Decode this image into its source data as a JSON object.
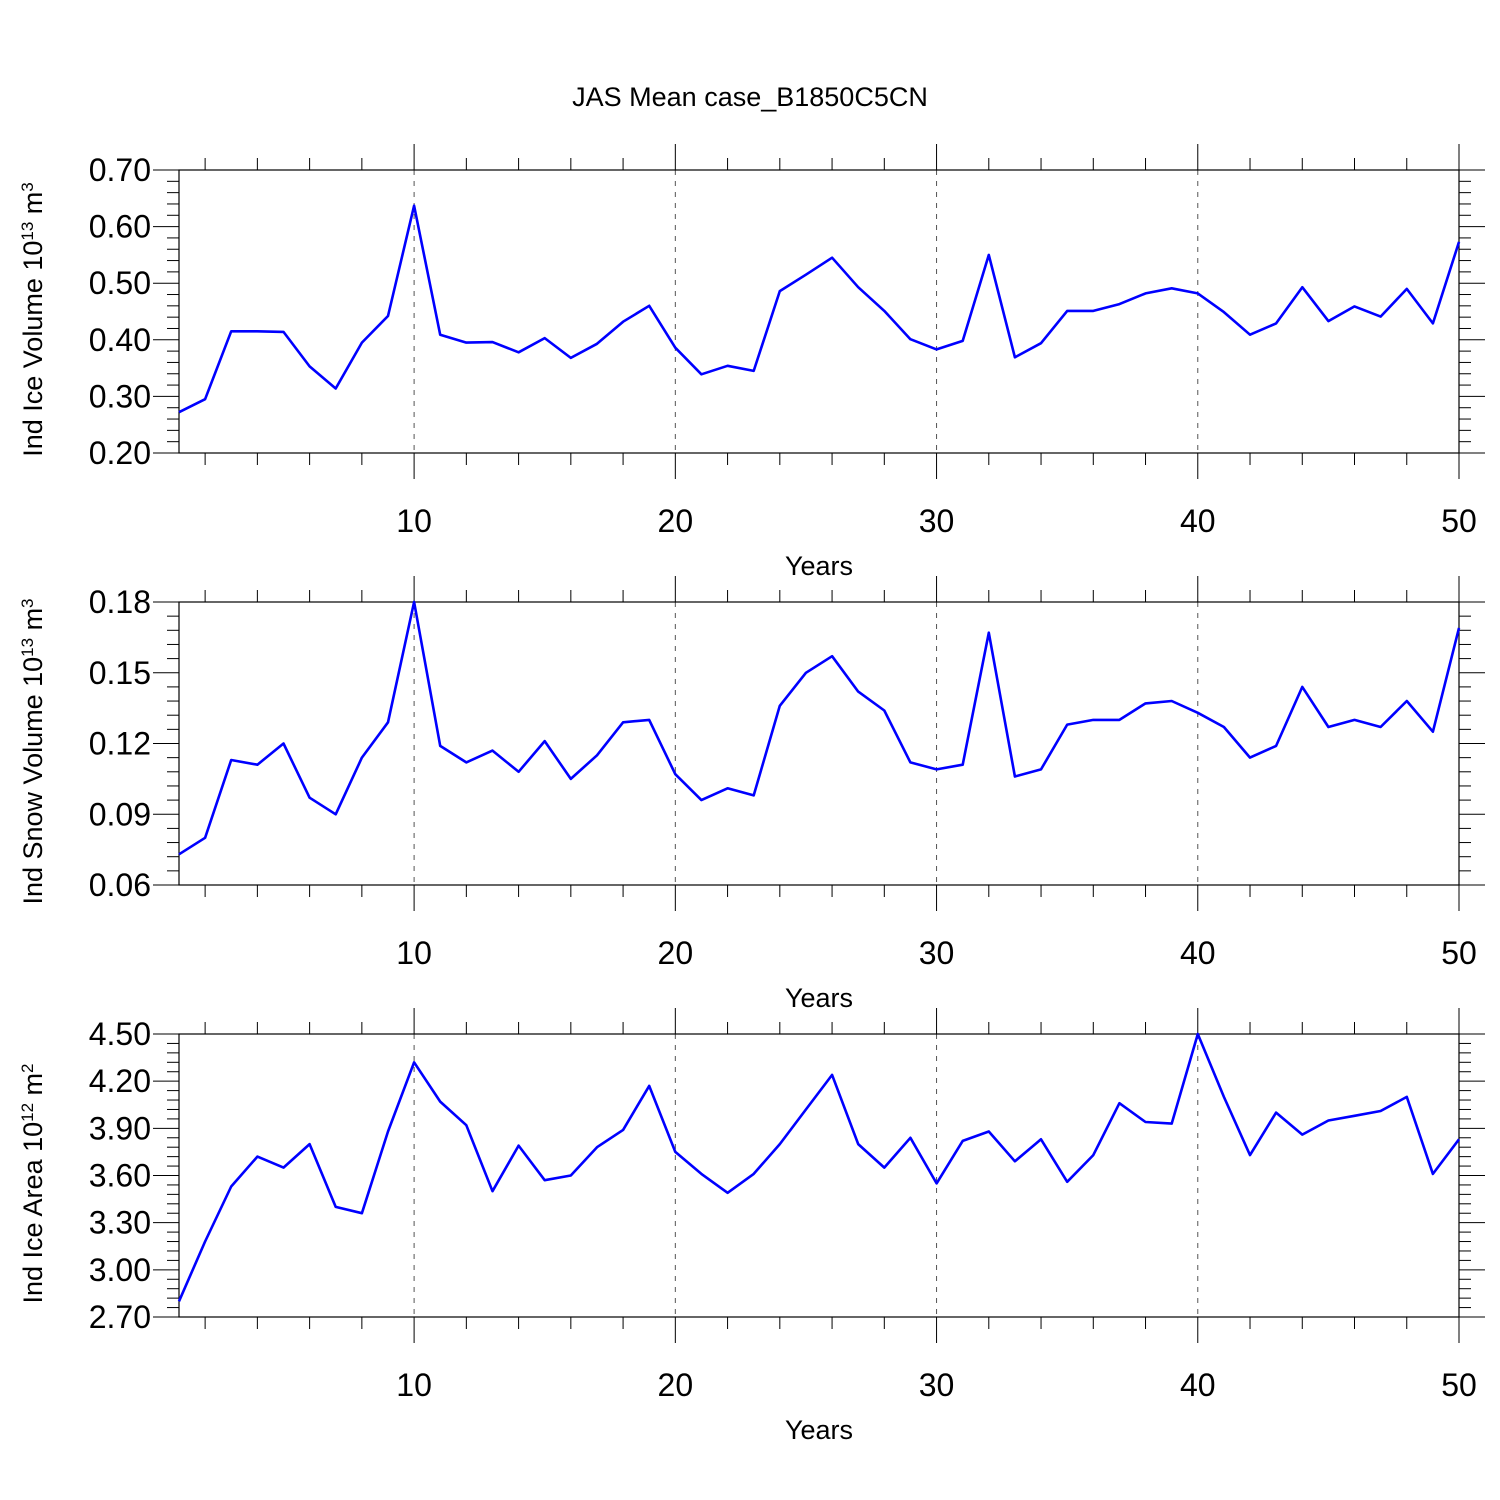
{
  "title": "JAS Mean case_B1850C5CN",
  "style": {
    "line_color": "#0000ff",
    "axis_color": "#000000",
    "grid_color": "#555555"
  },
  "chart_data": [
    {
      "type": "line",
      "xlabel": "Years",
      "ylabel": {
        "text": "Ind Ice Volume 10",
        "sup1": "13",
        "unit": " m",
        "sup2": "3"
      },
      "xlim": [
        1,
        50
      ],
      "ylim": [
        0.2,
        0.7
      ],
      "xticks": [
        10,
        20,
        30,
        40,
        50
      ],
      "yticks": [
        "0.20",
        "0.30",
        "0.40",
        "0.50",
        "0.60",
        "0.70"
      ],
      "grid": "vertical dashed at major x ticks",
      "x": [
        1,
        2,
        3,
        4,
        5,
        6,
        7,
        8,
        9,
        10,
        11,
        12,
        13,
        14,
        15,
        16,
        17,
        18,
        19,
        20,
        21,
        22,
        23,
        24,
        25,
        26,
        27,
        28,
        29,
        30,
        31,
        32,
        33,
        34,
        35,
        36,
        37,
        38,
        39,
        40,
        41,
        42,
        43,
        44,
        45,
        46,
        47,
        48,
        49,
        50
      ],
      "values": [
        0.272,
        0.295,
        0.415,
        0.415,
        0.414,
        0.353,
        0.314,
        0.395,
        0.442,
        0.637,
        0.409,
        0.395,
        0.396,
        0.378,
        0.403,
        0.368,
        0.393,
        0.432,
        0.46,
        0.386,
        0.339,
        0.354,
        0.345,
        0.486,
        0.515,
        0.545,
        0.493,
        0.451,
        0.401,
        0.383,
        0.398,
        0.55,
        0.369,
        0.394,
        0.451,
        0.451,
        0.463,
        0.482,
        0.491,
        0.482,
        0.449,
        0.409,
        0.429,
        0.493,
        0.433,
        0.459,
        0.441,
        0.49,
        0.429,
        0.573
      ]
    },
    {
      "type": "line",
      "xlabel": "Years",
      "ylabel": {
        "text": "Ind Snow Volume 10",
        "sup1": "13",
        "unit": " m",
        "sup2": "3"
      },
      "xlim": [
        1,
        50
      ],
      "ylim": [
        0.06,
        0.18
      ],
      "xticks": [
        10,
        20,
        30,
        40,
        50
      ],
      "yticks": [
        "0.06",
        "0.09",
        "0.12",
        "0.15",
        "0.18"
      ],
      "grid": "vertical dashed at major x ticks",
      "x": [
        1,
        2,
        3,
        4,
        5,
        6,
        7,
        8,
        9,
        10,
        11,
        12,
        13,
        14,
        15,
        16,
        17,
        18,
        19,
        20,
        21,
        22,
        23,
        24,
        25,
        26,
        27,
        28,
        29,
        30,
        31,
        32,
        33,
        34,
        35,
        36,
        37,
        38,
        39,
        40,
        41,
        42,
        43,
        44,
        45,
        46,
        47,
        48,
        49,
        50
      ],
      "values": [
        0.073,
        0.08,
        0.113,
        0.111,
        0.12,
        0.097,
        0.09,
        0.114,
        0.129,
        0.18,
        0.119,
        0.112,
        0.117,
        0.108,
        0.121,
        0.105,
        0.115,
        0.129,
        0.13,
        0.107,
        0.096,
        0.101,
        0.098,
        0.136,
        0.15,
        0.157,
        0.142,
        0.134,
        0.112,
        0.109,
        0.111,
        0.167,
        0.106,
        0.109,
        0.128,
        0.13,
        0.13,
        0.137,
        0.138,
        0.133,
        0.127,
        0.114,
        0.119,
        0.144,
        0.127,
        0.13,
        0.127,
        0.138,
        0.125,
        0.169
      ]
    },
    {
      "type": "line",
      "xlabel": "Years",
      "ylabel": {
        "text": "Ind Ice Area 10",
        "sup1": "12",
        "unit": " m",
        "sup2": "2"
      },
      "xlim": [
        1,
        50
      ],
      "ylim": [
        2.7,
        4.5
      ],
      "xticks": [
        10,
        20,
        30,
        40,
        50
      ],
      "yticks": [
        "2.70",
        "3.00",
        "3.30",
        "3.60",
        "3.90",
        "4.20",
        "4.50"
      ],
      "grid": "vertical dashed at major x ticks",
      "x": [
        1,
        2,
        3,
        4,
        5,
        6,
        7,
        8,
        9,
        10,
        11,
        12,
        13,
        14,
        15,
        16,
        17,
        18,
        19,
        20,
        21,
        22,
        23,
        24,
        25,
        26,
        27,
        28,
        29,
        30,
        31,
        32,
        33,
        34,
        35,
        36,
        37,
        38,
        39,
        40,
        41,
        42,
        43,
        44,
        45,
        46,
        47,
        48,
        49,
        50
      ],
      "values": [
        2.8,
        3.18,
        3.53,
        3.72,
        3.65,
        3.8,
        3.4,
        3.36,
        3.88,
        4.32,
        4.07,
        3.92,
        3.5,
        3.79,
        3.57,
        3.6,
        3.78,
        3.89,
        4.17,
        3.75,
        3.61,
        3.49,
        3.61,
        3.8,
        4.02,
        4.24,
        3.8,
        3.65,
        3.84,
        3.55,
        3.82,
        3.88,
        3.69,
        3.83,
        3.56,
        3.73,
        4.06,
        3.94,
        3.93,
        4.5,
        4.1,
        3.73,
        4.0,
        3.86,
        3.95,
        3.98,
        4.01,
        4.1,
        3.61,
        3.83
      ]
    }
  ]
}
